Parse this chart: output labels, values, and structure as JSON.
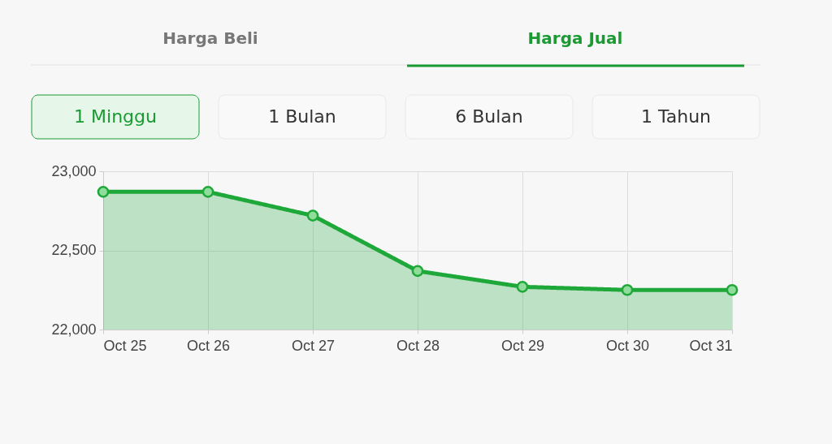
{
  "chart_data": {
    "type": "area",
    "annotations": [
      "Harga Beli",
      "Harga Jual",
      "1 Minggu",
      "1 Bulan",
      "6 Bulan",
      "1 Tahun"
    ],
    "categories": [
      "Oct 25",
      "Oct 26",
      "Oct 27",
      "Oct 28",
      "Oct 29",
      "Oct 30",
      "Oct 31"
    ],
    "series": [
      {
        "color": "#1fa83a",
        "values": [
          22870,
          22870,
          22720,
          22370,
          22270,
          22250,
          22250
        ]
      }
    ],
    "ylim": [
      22000,
      23000
    ],
    "yticks": [
      {
        "value": 22000,
        "label": "22,000"
      },
      {
        "value": 22500,
        "label": "22,500"
      },
      {
        "value": 23000,
        "label": "23,000"
      }
    ],
    "grid": true,
    "marker": "circle",
    "line_style": "solid"
  }
}
